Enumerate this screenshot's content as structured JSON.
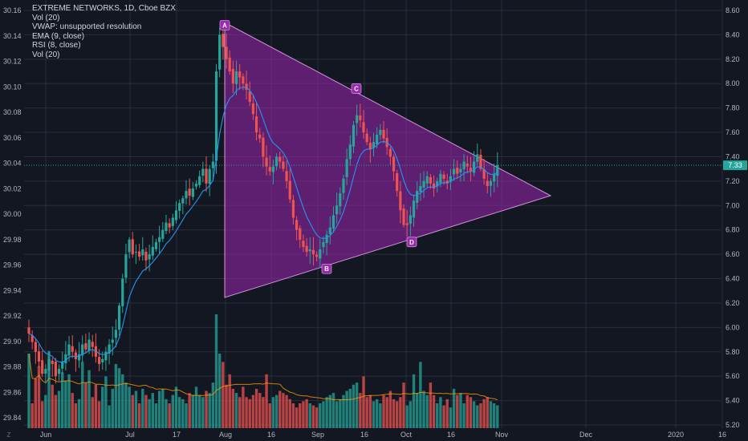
{
  "legend": {
    "title": "EXTREME NETWORKS, 1D, Cboe BZX",
    "indicators": [
      "Vol (20)",
      "VWAP: unsupported resolution",
      "EMA (9, close)",
      "RSI (8, close)",
      "Vol (20)"
    ]
  },
  "corner_label": "Z",
  "colors": {
    "background": "#131722",
    "grid": "#2a2e39",
    "up": "#26a69a",
    "down": "#ef5350",
    "ema": "#2196f3",
    "vol_ma": "#ff9800",
    "triangle_fill": "#9c27b0",
    "triangle_edge": "#ce93d8",
    "point_badge": "#9c27b0",
    "last_price": "#26a69a"
  },
  "chart_data": {
    "type": "candlestick",
    "title": "EXTREME NETWORKS, 1D, Cboe BZX",
    "x_ticks": [
      "Jun",
      "Jul",
      "17",
      "Aug",
      "16",
      "Sep",
      "16",
      "Oct",
      "16",
      "Nov",
      "Dec",
      "2020",
      "16"
    ],
    "left_axis": {
      "ticks": [
        "30.16",
        "30.14",
        "30.12",
        "30.10",
        "30.08",
        "30.06",
        "30.04",
        "30.02",
        "30.00",
        "29.98",
        "29.96",
        "29.94",
        "29.92",
        "29.90",
        "29.88",
        "29.86",
        "29.84"
      ]
    },
    "right_axis": {
      "ticks": [
        "8.60",
        "8.40",
        "8.20",
        "8.00",
        "7.80",
        "7.60",
        "7.40",
        "7.20",
        "7.00",
        "6.80",
        "6.60",
        "6.40",
        "6.20",
        "6.00",
        "5.80",
        "5.60",
        "5.40",
        "5.20"
      ],
      "range": [
        5.2,
        8.6
      ]
    },
    "last_price": "7.33",
    "closes": [
      5.95,
      5.88,
      5.8,
      5.72,
      5.62,
      5.66,
      5.74,
      5.7,
      5.6,
      5.66,
      5.72,
      5.78,
      5.86,
      5.8,
      5.74,
      5.78,
      5.86,
      5.82,
      5.9,
      5.84,
      5.76,
      5.7,
      5.74,
      5.8,
      5.86,
      5.9,
      5.98,
      6.18,
      6.4,
      6.6,
      6.72,
      6.6,
      6.62,
      6.58,
      6.64,
      6.55,
      6.6,
      6.66,
      6.7,
      6.74,
      6.8,
      6.86,
      6.82,
      6.9,
      6.96,
      7.02,
      7.06,
      7.12,
      7.08,
      7.14,
      7.18,
      7.24,
      7.3,
      7.18,
      7.3,
      7.36,
      8.1,
      8.4,
      8.3,
      8.2,
      8.1,
      8.0,
      8.1,
      8.05,
      8.0,
      7.95,
      7.85,
      7.75,
      7.6,
      7.55,
      7.4,
      7.32,
      7.28,
      7.32,
      7.4,
      7.36,
      7.3,
      7.2,
      7.05,
      6.9,
      6.8,
      6.72,
      6.66,
      6.62,
      6.64,
      6.6,
      6.58,
      6.64,
      6.7,
      6.76,
      6.82,
      6.92,
      7.0,
      7.1,
      7.22,
      7.38,
      7.5,
      7.66,
      7.74,
      7.7,
      7.6,
      7.52,
      7.46,
      7.52,
      7.58,
      7.62,
      7.55,
      7.48,
      7.4,
      7.28,
      7.12,
      6.96,
      6.84,
      6.84,
      6.92,
      7.04,
      7.12,
      7.16,
      7.2,
      7.24,
      7.18,
      7.14,
      7.2,
      7.26,
      7.22,
      7.18,
      7.24,
      7.3,
      7.26,
      7.3,
      7.36,
      7.32,
      7.28,
      7.36,
      7.42,
      7.3,
      7.22,
      7.16,
      7.2,
      7.26,
      7.33
    ],
    "volumes": [
      3.6,
      1.2,
      2.4,
      3.0,
      1.3,
      1.6,
      3.7,
      2.1,
      1.6,
      1.8,
      2.7,
      2.3,
      2.6,
      1.7,
      1.2,
      1.4,
      3.2,
      2.2,
      2.8,
      1.5,
      2.1,
      1.3,
      2.0,
      2.5,
      1.1,
      1.9,
      3.1,
      2.9,
      2.6,
      2.2,
      2.0,
      1.6,
      1.8,
      1.2,
      1.9,
      1.6,
      1.4,
      1.7,
      1.2,
      1.8,
      1.9,
      1.4,
      1.2,
      1.6,
      2.0,
      1.5,
      1.4,
      1.2,
      1.7,
      1.6,
      2.0,
      1.6,
      1.5,
      1.8,
      1.7,
      2.2,
      5.5,
      3.6,
      3.2,
      2.1,
      2.6,
      1.9,
      1.7,
      1.5,
      2.0,
      1.5,
      1.4,
      1.6,
      1.9,
      1.7,
      1.5,
      2.6,
      1.2,
      1.5,
      1.6,
      1.8,
      1.7,
      1.6,
      1.4,
      1.2,
      1.0,
      1.2,
      1.3,
      1.4,
      1.2,
      1.1,
      1.0,
      1.2,
      1.3,
      1.5,
      1.6,
      1.7,
      1.3,
      1.4,
      1.6,
      1.8,
      1.9,
      2.1,
      2.2,
      1.7,
      2.5,
      1.5,
      1.6,
      1.3,
      1.4,
      1.2,
      1.6,
      1.5,
      1.8,
      1.4,
      1.3,
      1.5,
      2.2,
      1.1,
      1.3,
      2.6,
      1.7,
      3.2,
      1.8,
      1.6,
      2.2,
      1.6,
      1.2,
      1.5,
      1.1,
      1.4,
      1.0,
      1.9,
      1.6,
      1.7,
      1.2,
      1.6,
      1.5,
      1.3,
      1.1,
      1.2,
      1.4,
      1.5,
      1.3,
      1.2,
      1.1
    ],
    "volume_range": [
      0,
      6
    ],
    "triangle_points": [
      {
        "label": "A",
        "price": 8.42
      },
      {
        "label": "B",
        "price": 6.54
      },
      {
        "label": "C",
        "price": 7.9
      },
      {
        "label": "D",
        "price": 6.76
      }
    ]
  }
}
